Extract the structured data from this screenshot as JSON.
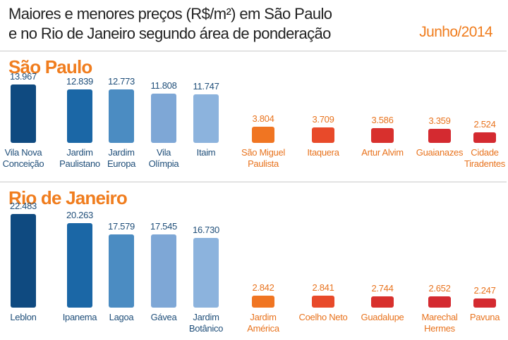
{
  "header": {
    "title": "Maiores e menores preços (R$/m²) em São Paulo\ne no Rio de Janeiro segundo área de ponderação",
    "date": "Junho/2014"
  },
  "chart_data": [
    {
      "type": "bar",
      "title": "São Paulo",
      "categories": [
        "Vila Nova\nConceição",
        "Jardim\nPaulistano",
        "Jardim\nEuropa",
        "Vila\nOlímpia",
        "Itaim",
        "São Miguel\nPaulista",
        "Itaquera",
        "Artur Alvim",
        "Guaianazes",
        "Cidade\nTiradentes"
      ],
      "values": [
        13967,
        12839,
        12773,
        11808,
        11747,
        3804,
        3709,
        3586,
        3359,
        2524
      ],
      "value_labels": [
        "13.967",
        "12.839",
        "12.773",
        "11.808",
        "11.747",
        "3.804",
        "3.709",
        "3.586",
        "3.359",
        "2.524"
      ],
      "colors": [
        "#0f4a80",
        "#1b67a6",
        "#4b8cc2",
        "#7ea7d6",
        "#8cb3dd",
        "#f07522",
        "#e84a2a",
        "#d8302d",
        "#d42a30",
        "#d42a30"
      ]
    },
    {
      "type": "bar",
      "title": "Rio de Janeiro",
      "categories": [
        "Leblon",
        "Ipanema",
        "Lagoa",
        "Gávea",
        "Jardim\nBotânico",
        "Jardim\nAmérica",
        "Coelho Neto",
        "Guadalupe",
        "Marechal\nHermes",
        "Pavuna"
      ],
      "values": [
        22483,
        20263,
        17579,
        17545,
        16730,
        2842,
        2841,
        2744,
        2652,
        2247
      ],
      "value_labels": [
        "22.483",
        "20.263",
        "17.579",
        "17.545",
        "16.730",
        "2.842",
        "2.841",
        "2.744",
        "2.652",
        "2.247"
      ],
      "colors": [
        "#0f4a80",
        "#1b67a6",
        "#4b8cc2",
        "#7ea7d6",
        "#8cb3dd",
        "#f07522",
        "#e84a2a",
        "#d8302d",
        "#d42a30",
        "#d42a30"
      ]
    }
  ]
}
